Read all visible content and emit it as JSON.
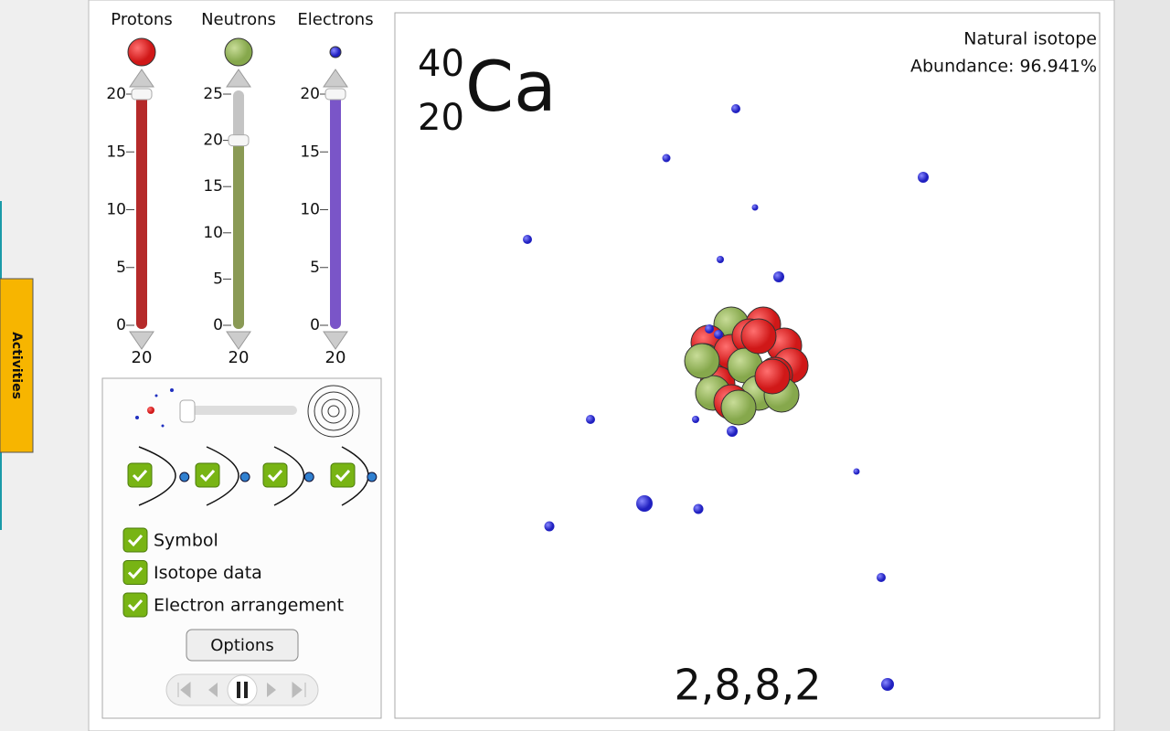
{
  "sliders": [
    {
      "label": "Protons",
      "ticks": [
        20,
        15,
        10,
        5,
        0
      ],
      "value": 20
    },
    {
      "label": "Neutrons",
      "ticks": [
        25,
        20,
        15,
        10,
        5,
        0
      ],
      "value": 20
    },
    {
      "label": "Electrons",
      "ticks": [
        20,
        15,
        10,
        5,
        0
      ],
      "value": 20
    }
  ],
  "view_options": [
    "Symbol",
    "Isotope data",
    "Electron arrangement"
  ],
  "options_button": "Options",
  "activities_tab": "Activities",
  "symbol": {
    "mass_number": 40,
    "atomic_number": 20,
    "element": "Ca"
  },
  "isotope": {
    "status": "Natural isotope",
    "abundance": "Abundance: 96.941%"
  },
  "electron_arrangement": "2,8,8,2"
}
